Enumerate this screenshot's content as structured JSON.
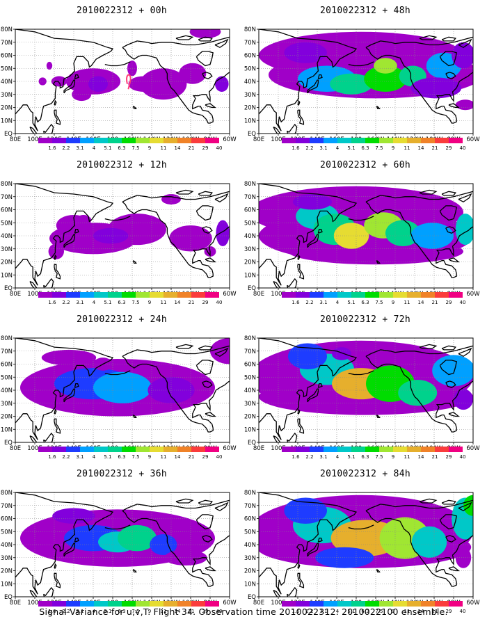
{
  "panels": [
    {
      "title": "2010022312 + 00h",
      "lead": 0
    },
    {
      "title": "2010022312 + 48h",
      "lead": 48
    },
    {
      "title": "2010022312 + 12h",
      "lead": 12
    },
    {
      "title": "2010022312 + 60h",
      "lead": 60
    },
    {
      "title": "2010022312 + 24h",
      "lead": 24
    },
    {
      "title": "2010022312 + 72h",
      "lead": 72
    },
    {
      "title": "2010022312 + 36h",
      "lead": 36
    },
    {
      "title": "2010022312 + 84h",
      "lead": 84
    }
  ],
  "lat_labels": [
    "80N",
    "70N",
    "60N",
    "50N",
    "40N",
    "30N",
    "20N",
    "10N",
    "EQ"
  ],
  "lon_labels": [
    "80E",
    "100E",
    "120E",
    "140E",
    "160E",
    "180",
    "160W",
    "140W",
    "120W",
    "100W",
    "80W",
    "60W"
  ],
  "colorbar": {
    "levels": [
      "1.6",
      "2.2",
      "3.1",
      "4",
      "5.1",
      "6.3",
      "7.5",
      "9",
      "11",
      "14",
      "21",
      "29",
      "40"
    ],
    "colors": [
      "#a000c8",
      "#8200dc",
      "#1e3cff",
      "#00a0ff",
      "#00c8c8",
      "#00d28c",
      "#00dc00",
      "#a0e632",
      "#e6dc32",
      "#e6af2d",
      "#f08228",
      "#fa3c3c",
      "#f00082"
    ]
  },
  "footer": "Signal Variance for u,v,T. Flight 34. Observation time 2010022312. 2010022100 ensemble."
}
